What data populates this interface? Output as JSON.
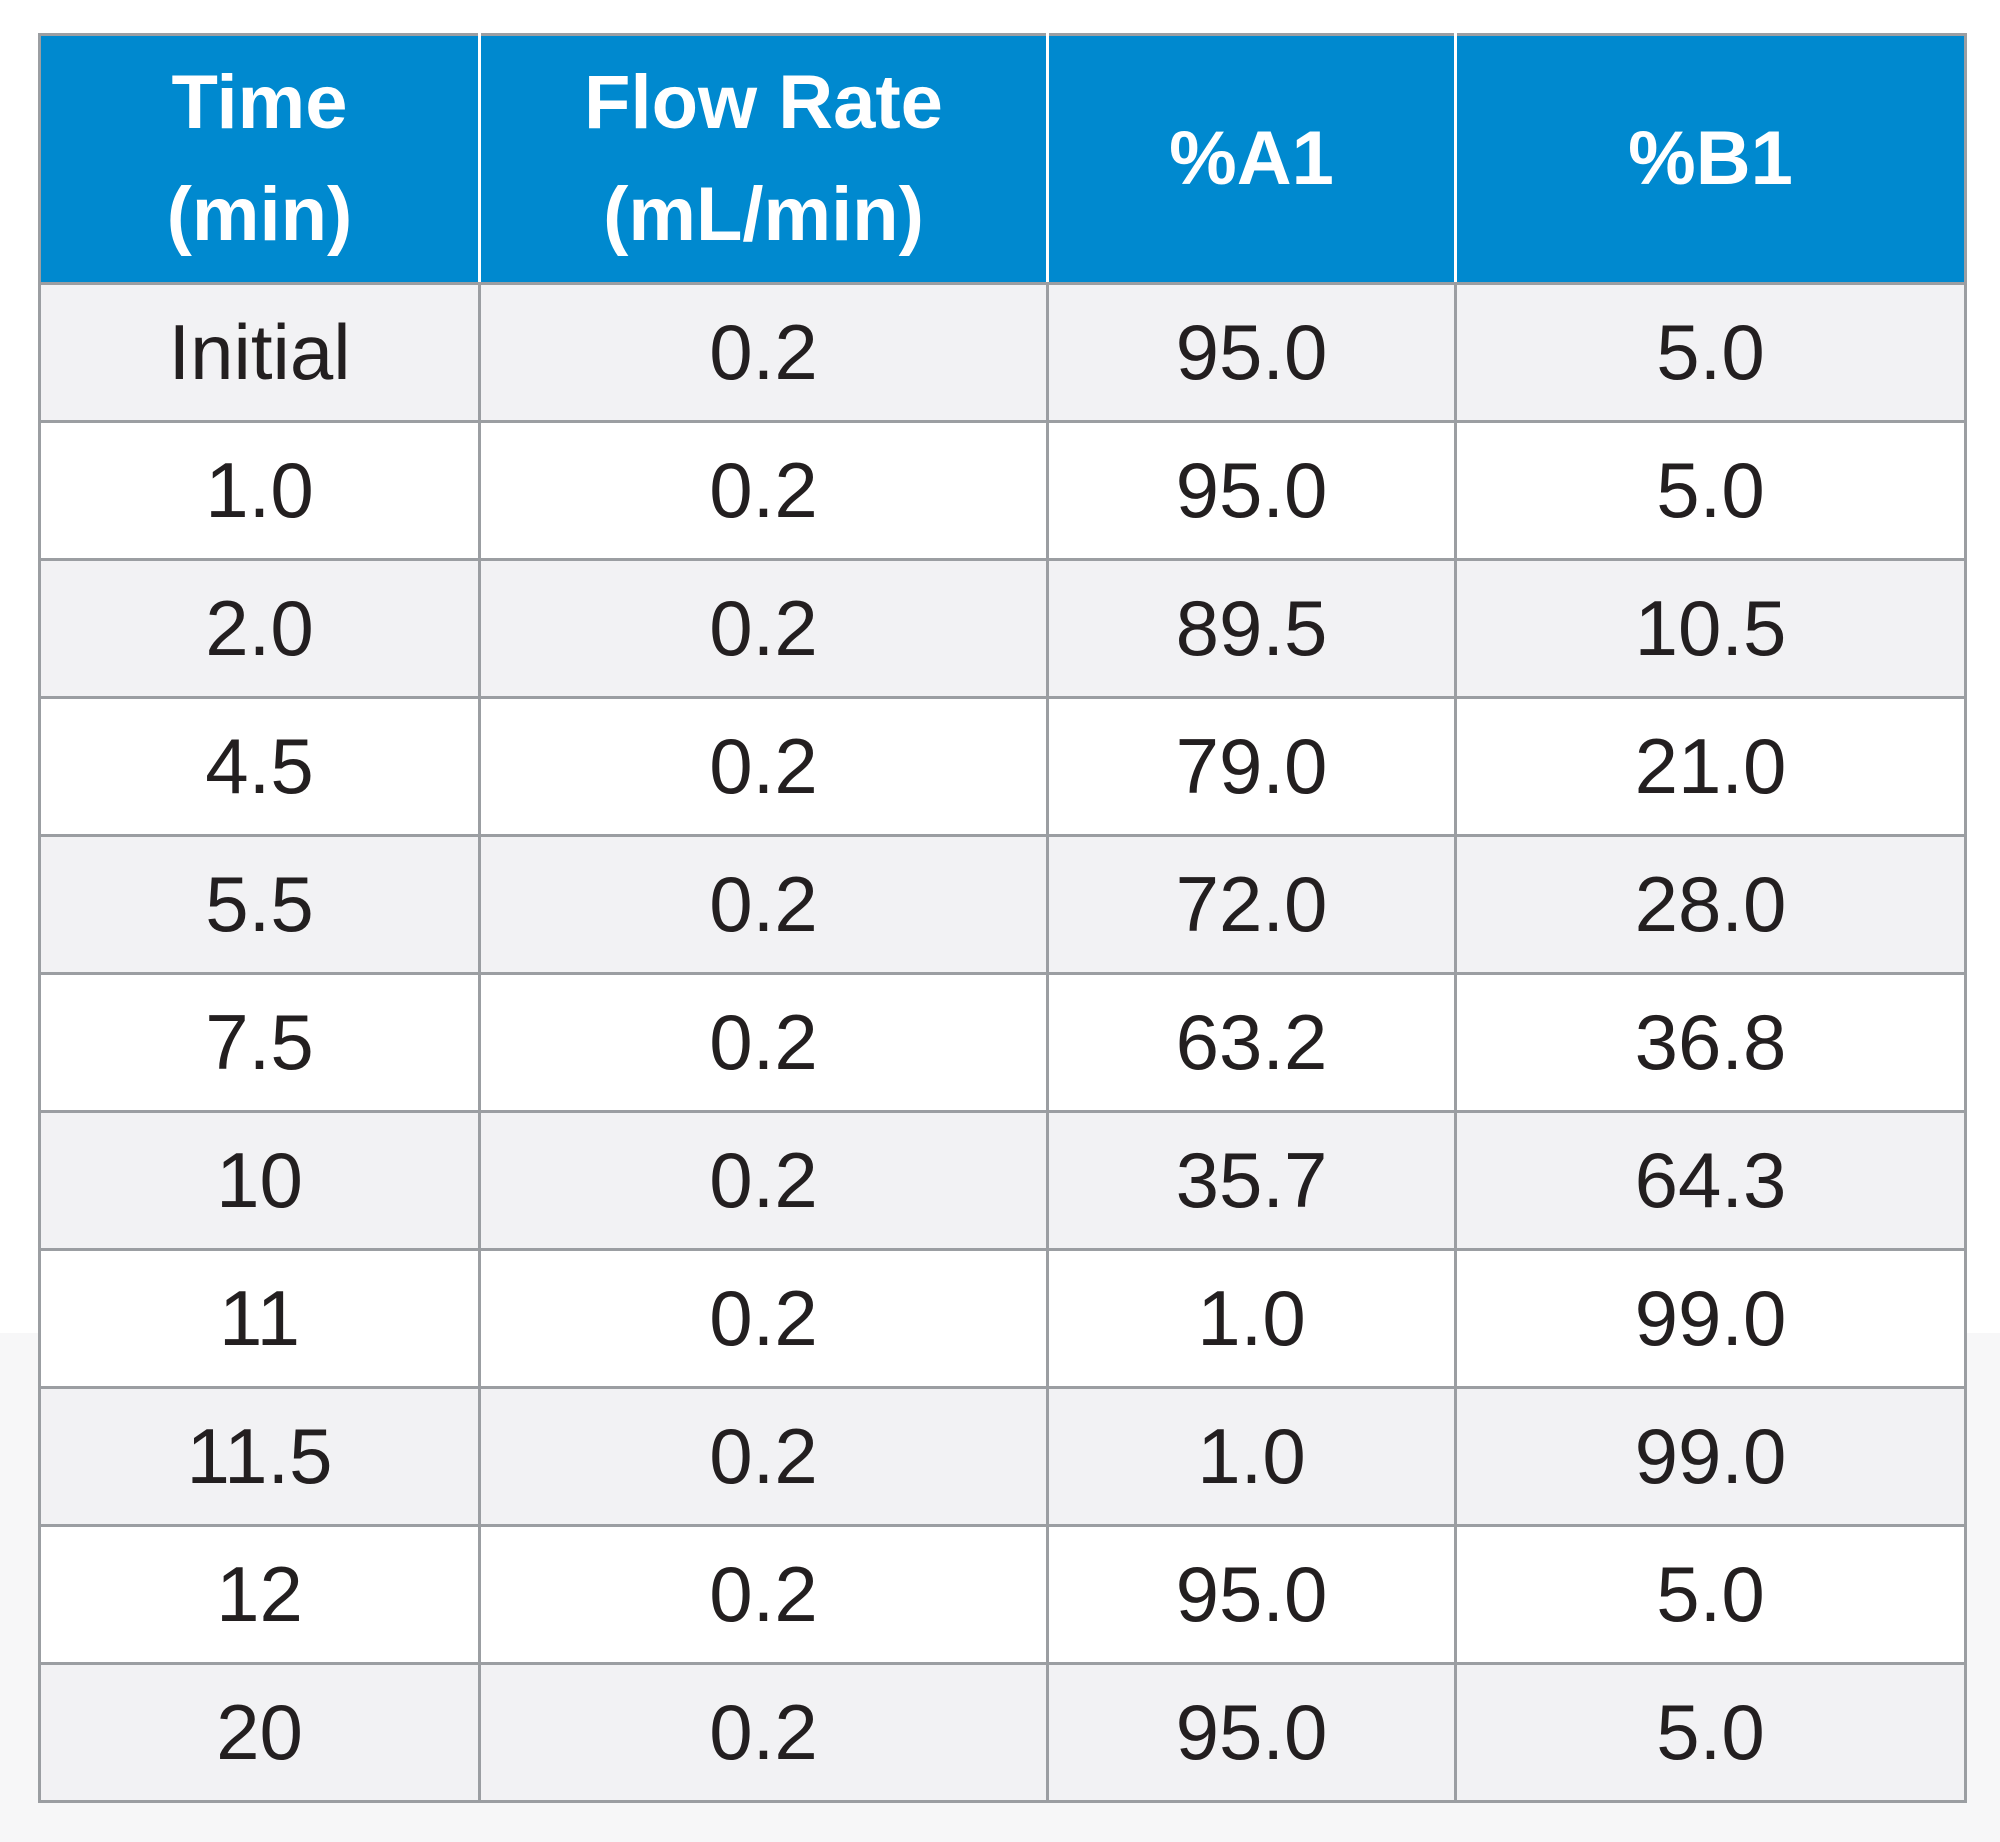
{
  "table": {
    "headers": [
      {
        "line1": "Time",
        "line2": "(min)"
      },
      {
        "line1": "Flow Rate",
        "line2": "(mL/min)"
      },
      {
        "line1": "%A1",
        "line2": ""
      },
      {
        "line1": "%B1",
        "line2": ""
      }
    ],
    "rows": [
      [
        "Initial",
        "0.2",
        "95.0",
        "5.0"
      ],
      [
        "1.0",
        "0.2",
        "95.0",
        "5.0"
      ],
      [
        "2.0",
        "0.2",
        "89.5",
        "10.5"
      ],
      [
        "4.5",
        "0.2",
        "79.0",
        "21.0"
      ],
      [
        "5.5",
        "0.2",
        "72.0",
        "28.0"
      ],
      [
        "7.5",
        "0.2",
        "63.2",
        "36.8"
      ],
      [
        "10",
        "0.2",
        "35.7",
        "64.3"
      ],
      [
        "11",
        "0.2",
        "1.0",
        "99.0"
      ],
      [
        "11.5",
        "0.2",
        "1.0",
        "99.0"
      ],
      [
        "12",
        "0.2",
        "95.0",
        "5.0"
      ],
      [
        "20",
        "0.2",
        "95.0",
        "5.0"
      ]
    ],
    "colors": {
      "header_background": "#0089cf",
      "header_text": "#ffffff",
      "row_alt_background": "#f2f2f4",
      "grid_line": "#9b9ea2",
      "body_text": "#231f20"
    }
  }
}
